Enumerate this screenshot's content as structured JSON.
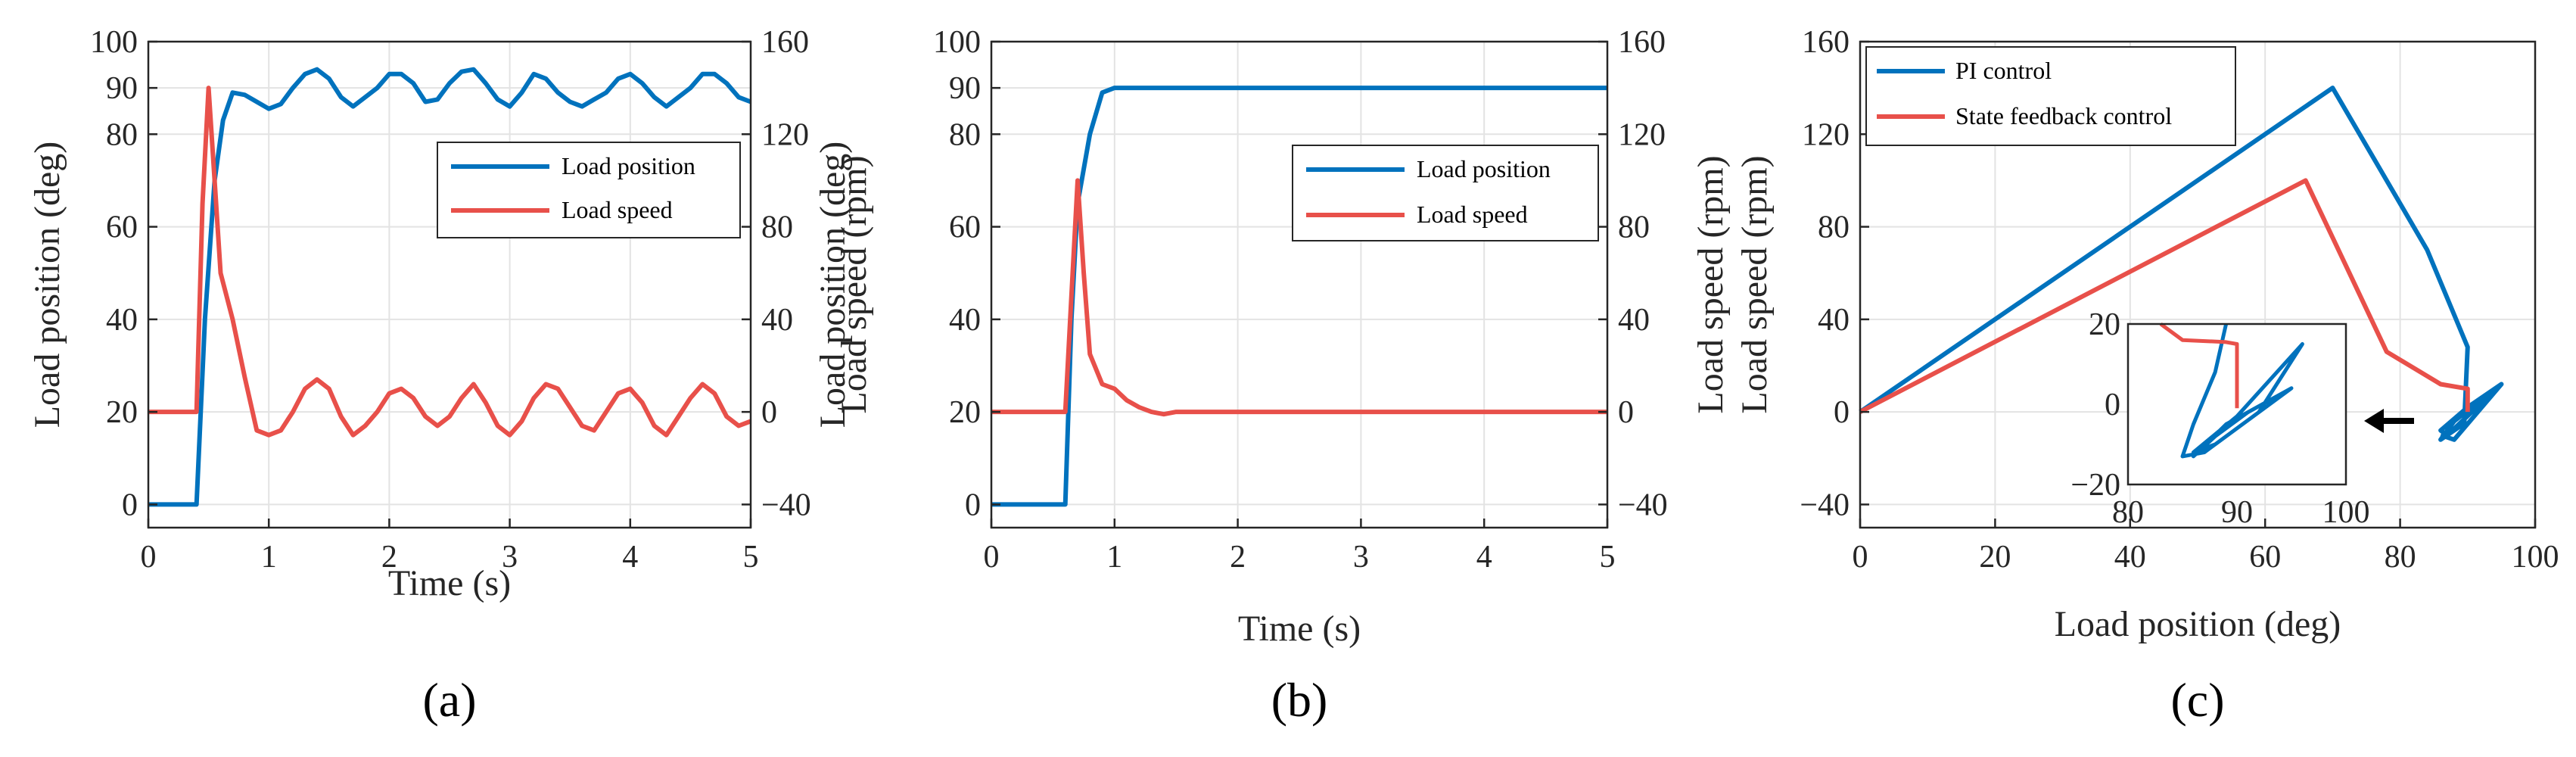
{
  "colors": {
    "blue": "#0072BD",
    "red": "#E8504A",
    "axis": "#262626",
    "grid": "#e3e3e3"
  },
  "chart_data": [
    {
      "panel_label": "(a)",
      "type": "line",
      "xlabel": "Time (s)",
      "ylabel_left": "Load position (deg)",
      "ylabel_right": "Load speed (rpm)",
      "xlim": [
        0,
        5
      ],
      "ylim_left": [
        -5,
        100
      ],
      "ylim_right": [
        -50,
        160
      ],
      "xticks": [
        "0",
        "1",
        "2",
        "3",
        "4",
        "5"
      ],
      "yticks_left": [
        "0",
        "20",
        "40",
        "60",
        "80",
        "90",
        "100"
      ],
      "yticks_right": [
        "−40",
        "0",
        "40",
        "80",
        "120",
        "160"
      ],
      "legend": [
        "Load position",
        "Load speed"
      ],
      "series": [
        {
          "name": "Load position",
          "axis": "left",
          "color": "blue",
          "x": [
            0,
            0.4,
            0.47,
            0.55,
            0.62,
            0.7,
            0.8,
            0.9,
            1.0,
            1.1,
            1.2,
            1.3,
            1.4,
            1.5,
            1.6,
            1.7,
            1.8,
            1.9,
            2.0,
            2.1,
            2.2,
            2.3,
            2.4,
            2.5,
            2.6,
            2.7,
            2.8,
            2.9,
            3.0,
            3.1,
            3.2,
            3.3,
            3.4,
            3.5,
            3.6,
            3.7,
            3.8,
            3.9,
            4.0,
            4.1,
            4.2,
            4.3,
            4.4,
            4.5,
            4.6,
            4.7,
            4.8,
            4.9,
            5.0
          ],
          "y": [
            0,
            0,
            40,
            70,
            83,
            89,
            88.5,
            87,
            85.5,
            86.5,
            90,
            93,
            94,
            92,
            88,
            86,
            88,
            90,
            93,
            93,
            91,
            87,
            87.5,
            91,
            93.5,
            94,
            91,
            87.5,
            86,
            89,
            93,
            92,
            89,
            87,
            86,
            87.5,
            89,
            92,
            93,
            91,
            88,
            86,
            88,
            90,
            93,
            93,
            91,
            88,
            87
          ]
        },
        {
          "name": "Load speed",
          "axis": "right",
          "color": "red",
          "x": [
            0,
            0.4,
            0.45,
            0.5,
            0.55,
            0.6,
            0.7,
            0.8,
            0.9,
            1.0,
            1.1,
            1.2,
            1.3,
            1.4,
            1.5,
            1.6,
            1.7,
            1.8,
            1.9,
            2.0,
            2.1,
            2.2,
            2.3,
            2.4,
            2.5,
            2.6,
            2.7,
            2.8,
            2.9,
            3.0,
            3.1,
            3.2,
            3.3,
            3.4,
            3.5,
            3.6,
            3.7,
            3.8,
            3.9,
            4.0,
            4.1,
            4.2,
            4.3,
            4.4,
            4.5,
            4.6,
            4.7,
            4.8,
            4.9,
            5.0
          ],
          "y": [
            0,
            0,
            90,
            140,
            100,
            60,
            40,
            15,
            -8,
            -10,
            -8,
            0,
            10,
            14,
            10,
            -2,
            -10,
            -6,
            0,
            8,
            10,
            6,
            -2,
            -6,
            -2,
            6,
            12,
            4,
            -6,
            -10,
            -4,
            6,
            12,
            10,
            2,
            -6,
            -8,
            0,
            8,
            10,
            4,
            -6,
            -10,
            -2,
            6,
            12,
            8,
            -2,
            -6,
            -4
          ]
        }
      ]
    },
    {
      "panel_label": "(b)",
      "type": "line",
      "xlabel": "Time (s)",
      "ylabel_left": "Load position (deg)",
      "ylabel_right": "Load speed (rpm)",
      "xlim": [
        0,
        5
      ],
      "ylim_left": [
        -5,
        100
      ],
      "ylim_right": [
        -50,
        160
      ],
      "xticks": [
        "0",
        "1",
        "2",
        "3",
        "4",
        "5"
      ],
      "yticks_left": [
        "0",
        "20",
        "40",
        "60",
        "80",
        "90",
        "100"
      ],
      "yticks_right": [
        "−40",
        "0",
        "40",
        "80",
        "120",
        "160"
      ],
      "legend": [
        "Load position",
        "Load speed"
      ],
      "series": [
        {
          "name": "Load position",
          "axis": "left",
          "color": "blue",
          "x": [
            0,
            0.6,
            0.65,
            0.7,
            0.8,
            0.9,
            1.0,
            1.5,
            2.0,
            3.0,
            4.0,
            5.0
          ],
          "y": [
            0,
            0,
            40,
            65,
            80,
            89,
            90,
            90,
            90,
            90,
            90,
            90
          ]
        },
        {
          "name": "Load speed",
          "axis": "right",
          "color": "red",
          "x": [
            0,
            0.6,
            0.65,
            0.7,
            0.75,
            0.8,
            0.9,
            1.0,
            1.1,
            1.2,
            1.3,
            1.4,
            1.5,
            2.0,
            3.0,
            4.0,
            5.0
          ],
          "y": [
            0,
            0,
            50,
            100,
            60,
            25,
            12,
            10,
            5,
            2,
            0,
            -1,
            0,
            0,
            0,
            0,
            0
          ]
        }
      ]
    },
    {
      "panel_label": "(c)",
      "type": "line",
      "xlabel": "Load position (deg)",
      "ylabel_left": "Load speed (rpm)",
      "xlim": [
        0,
        100
      ],
      "ylim_left": [
        -50,
        160
      ],
      "xticks": [
        "0",
        "20",
        "40",
        "60",
        "80",
        "100"
      ],
      "yticks_left": [
        "−40",
        "0",
        "40",
        "80",
        "120",
        "160"
      ],
      "legend": [
        "PI control",
        "State feedback control"
      ],
      "series": [
        {
          "name": "PI control",
          "color": "blue",
          "x": [
            0,
            70,
            84,
            90,
            89.5,
            86,
            88,
            95,
            87,
            86,
            90,
            95,
            88,
            86
          ],
          "y": [
            0,
            140,
            70,
            28,
            -5,
            -12,
            -4,
            12,
            -10,
            -8,
            2,
            12,
            -12,
            -10
          ]
        },
        {
          "name": "State feedback control",
          "color": "red",
          "x": [
            0,
            66,
            78,
            86,
            90,
            90
          ],
          "y": [
            0,
            100,
            26,
            12,
            10,
            0
          ]
        }
      ],
      "inset": {
        "xlim": [
          80,
          100
        ],
        "ylim": [
          -20,
          20
        ],
        "xticks": [
          "80",
          "90",
          "100"
        ],
        "yticks": [
          "20",
          "0",
          "−20"
        ],
        "series": [
          {
            "name": "PI control",
            "color": "blue",
            "x": [
              89,
              88,
              86,
              85,
              87,
              92,
              96,
              90,
              86,
              88,
              95,
              89,
              86,
              88,
              91
            ],
            "y": [
              20,
              8,
              -5,
              -13,
              -12,
              -2,
              15,
              -3,
              -12,
              -10,
              4,
              -5,
              -13,
              -8,
              -2
            ]
          },
          {
            "name": "State feedback control",
            "color": "red",
            "x": [
              83,
              85,
              89,
              90,
              90
            ],
            "y": [
              20,
              16,
              15.5,
              15,
              -1
            ]
          }
        ]
      }
    }
  ]
}
